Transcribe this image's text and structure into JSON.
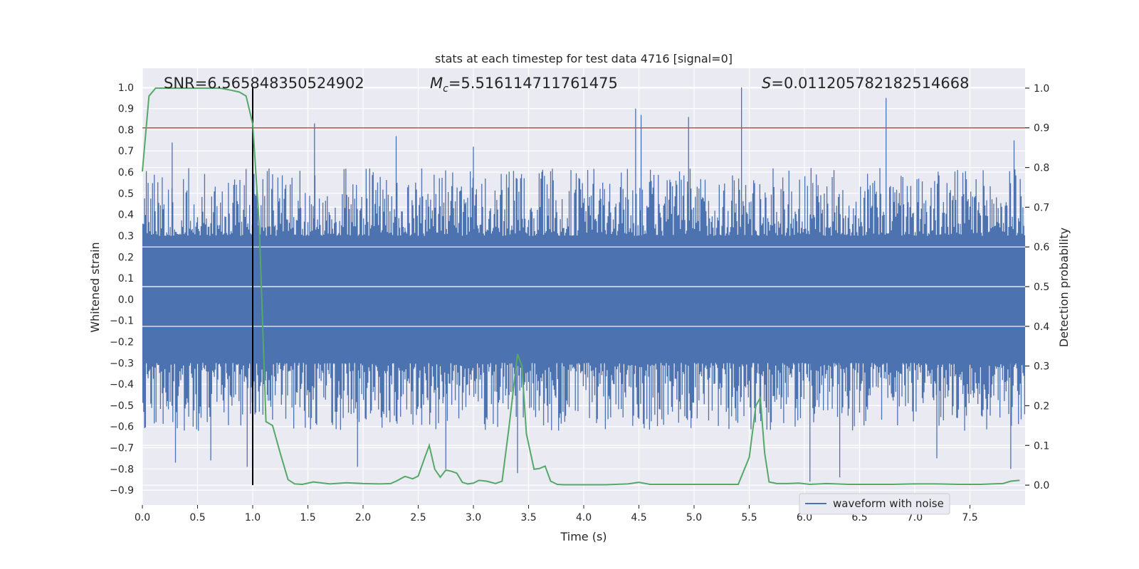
{
  "chart_data": {
    "type": "line",
    "title": "stats at each timestep for test data 4716 [signal=0]",
    "xlabel": "Time (s)",
    "ylabel_left": "Whitened strain",
    "ylabel_right": "Detection probability",
    "xlim": [
      0,
      8
    ],
    "ylim_left": [
      -0.97,
      1.09
    ],
    "ylim_right": [
      -0.05,
      1.05
    ],
    "xticks": [
      0.0,
      0.5,
      1.0,
      1.5,
      2.0,
      2.5,
      3.0,
      3.5,
      4.0,
      4.5,
      5.0,
      5.5,
      6.0,
      6.5,
      7.0,
      7.5
    ],
    "xtick_labels": [
      "0.0",
      "0.5",
      "1.0",
      "1.5",
      "2.0",
      "2.5",
      "3.0",
      "3.5",
      "4.0",
      "4.5",
      "5.0",
      "5.5",
      "6.0",
      "6.5",
      "7.0",
      "7.5"
    ],
    "yticks_left": [
      -0.9,
      -0.8,
      -0.7,
      -0.6,
      -0.5,
      -0.4,
      -0.3,
      -0.2,
      -0.1,
      0.0,
      0.1,
      0.2,
      0.3,
      0.4,
      0.5,
      0.6,
      0.7,
      0.8,
      0.9,
      1.0
    ],
    "ytick_labels_left": [
      "−0.9",
      "−0.8",
      "−0.7",
      "−0.6",
      "−0.5",
      "−0.4",
      "−0.3",
      "−0.2",
      "−0.1",
      "0.0",
      "0.1",
      "0.2",
      "0.3",
      "0.4",
      "0.5",
      "0.6",
      "0.7",
      "0.8",
      "0.9",
      "1.0"
    ],
    "yticks_right": [
      0.0,
      0.1,
      0.2,
      0.3,
      0.4,
      0.5,
      0.6,
      0.7,
      0.8,
      0.9,
      1.0
    ],
    "ytick_labels_right": [
      "0.0",
      "0.1",
      "0.2",
      "0.3",
      "0.4",
      "0.5",
      "0.6",
      "0.7",
      "0.8",
      "0.9",
      "1.0"
    ],
    "annotations": {
      "snr": "SNR=6.565848350524902",
      "mc_symbol": "M",
      "mc_sub": "c",
      "mc_value": "=5.516114711761475",
      "s_symbol": "S",
      "s_value": "=0.011205782182514668"
    },
    "threshold_prob": 0.9,
    "vline_time": 1.0,
    "legend": {
      "label": "waveform with noise",
      "position": "lower-right"
    },
    "grid": true,
    "series": [
      {
        "name": "waveform with noise",
        "color": "#4c72b0",
        "envelope": "dense noise, |strain| mostly < 0.6",
        "peaks": [
          [
            0.27,
            0.74
          ],
          [
            0.3,
            -0.77
          ],
          [
            0.62,
            -0.76
          ],
          [
            0.95,
            -0.79
          ],
          [
            1.56,
            0.83
          ],
          [
            1.95,
            -0.79
          ],
          [
            2.3,
            0.77
          ],
          [
            2.75,
            -0.8
          ],
          [
            3.0,
            0.72
          ],
          [
            3.4,
            -0.82
          ],
          [
            4.47,
            0.9
          ],
          [
            4.52,
            0.87
          ],
          [
            4.95,
            0.86
          ],
          [
            5.43,
            1.0
          ],
          [
            6.05,
            -0.86
          ],
          [
            6.32,
            -0.84
          ],
          [
            6.74,
            0.95
          ],
          [
            7.2,
            -0.75
          ],
          [
            7.87,
            -0.8
          ],
          [
            7.9,
            0.75
          ]
        ]
      },
      {
        "name": "detection probability",
        "color": "#55a868",
        "x": [
          0,
          0.06,
          0.12,
          0.2,
          0.3,
          0.4,
          0.5,
          0.6,
          0.7,
          0.8,
          0.88,
          0.94,
          1.0,
          1.06,
          1.12,
          1.18,
          1.25,
          1.32,
          1.38,
          1.45,
          1.55,
          1.7,
          1.85,
          2.0,
          2.15,
          2.25,
          2.3,
          2.38,
          2.45,
          2.5,
          2.56,
          2.6,
          2.65,
          2.7,
          2.75,
          2.8,
          2.85,
          2.9,
          2.95,
          3.0,
          3.05,
          3.12,
          3.2,
          3.26,
          3.32,
          3.4,
          3.44,
          3.48,
          3.55,
          3.6,
          3.65,
          3.7,
          3.76,
          3.82,
          3.9,
          4.0,
          4.2,
          4.4,
          4.5,
          4.6,
          4.8,
          5.0,
          5.2,
          5.4,
          5.5,
          5.56,
          5.6,
          5.64,
          5.68,
          5.75,
          5.85,
          5.95,
          6.05,
          6.2,
          6.4,
          6.6,
          6.8,
          7.0,
          7.2,
          7.4,
          7.6,
          7.7,
          7.8,
          7.87,
          7.95
        ],
        "y": [
          0.79,
          0.98,
          1.0,
          1.0,
          1.0,
          1.0,
          1.0,
          1.0,
          1.0,
          0.995,
          0.99,
          0.98,
          0.91,
          0.65,
          0.16,
          0.15,
          0.08,
          0.014,
          0.003,
          0.002,
          0.008,
          0.003,
          0.006,
          0.004,
          0.003,
          0.004,
          0.01,
          0.022,
          0.016,
          0.023,
          0.07,
          0.1,
          0.04,
          0.02,
          0.038,
          0.035,
          0.03,
          0.007,
          0.003,
          0.005,
          0.012,
          0.01,
          0.004,
          0.01,
          0.14,
          0.33,
          0.3,
          0.13,
          0.04,
          0.042,
          0.048,
          0.01,
          0.002,
          0.001,
          0.001,
          0.001,
          0.001,
          0.003,
          0.007,
          0.002,
          0.002,
          0.002,
          0.002,
          0.002,
          0.07,
          0.2,
          0.22,
          0.08,
          0.008,
          0.004,
          0.004,
          0.005,
          0.002,
          0.004,
          0.002,
          0.002,
          0.002,
          0.003,
          0.003,
          0.002,
          0.002,
          0.003,
          0.004,
          0.01,
          0.012
        ]
      }
    ]
  }
}
